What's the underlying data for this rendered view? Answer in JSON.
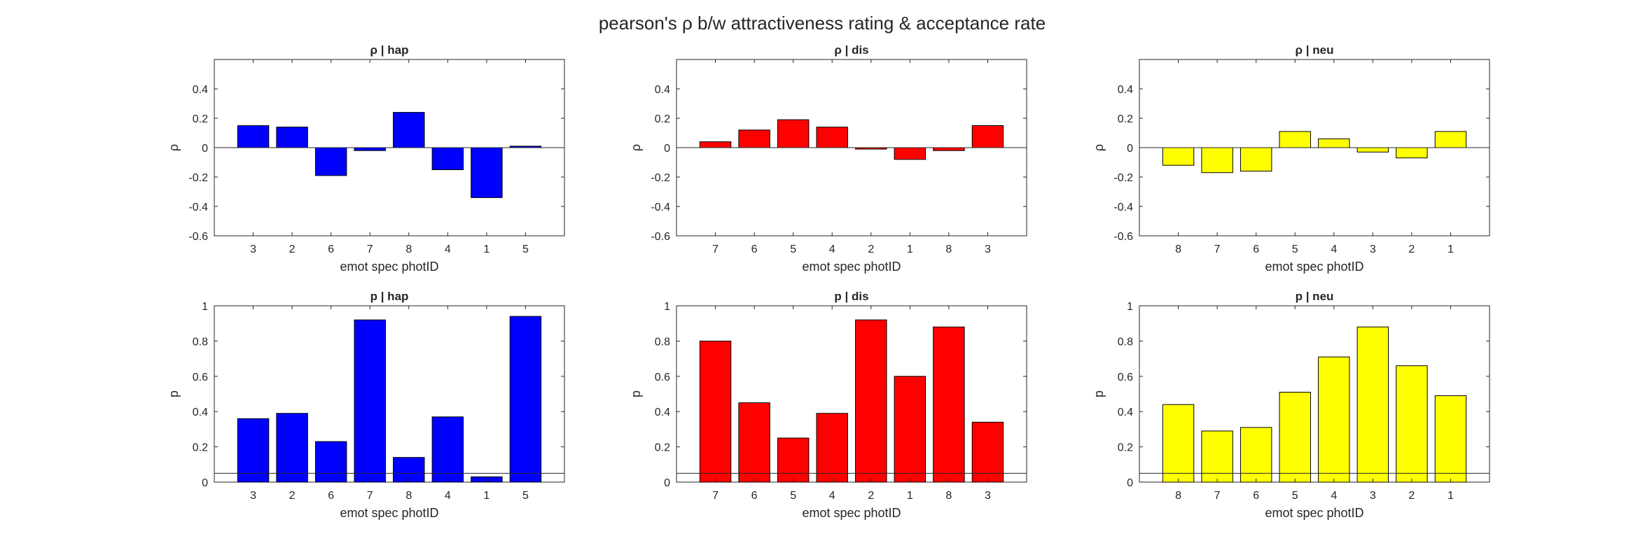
{
  "figure": {
    "title": "pearson's ρ b/w attractiveness rating & acceptance rate"
  },
  "chart_data": [
    {
      "type": "bar",
      "title": "ρ | hap",
      "xlabel": "emot spec photID",
      "ylabel": "ρ",
      "color": "#0000ff",
      "ylim": [
        -0.6,
        0.6
      ],
      "yticks": [
        -0.6,
        -0.4,
        -0.2,
        0,
        0.2,
        0.4
      ],
      "ytick_labels": [
        "-0.6",
        "-0.4",
        "-0.2",
        "0",
        "0.2",
        "0.4"
      ],
      "categories": [
        "3",
        "2",
        "6",
        "7",
        "8",
        "4",
        "1",
        "5"
      ],
      "values": [
        0.15,
        0.14,
        -0.19,
        -0.02,
        0.24,
        -0.15,
        -0.34,
        0.01
      ],
      "reference_line": 0
    },
    {
      "type": "bar",
      "title": "ρ | dis",
      "xlabel": "emot spec photID",
      "ylabel": "ρ",
      "color": "#ff0000",
      "ylim": [
        -0.6,
        0.6
      ],
      "yticks": [
        -0.6,
        -0.4,
        -0.2,
        0,
        0.2,
        0.4
      ],
      "ytick_labels": [
        "-0.6",
        "-0.4",
        "-0.2",
        "0",
        "0.2",
        "0.4"
      ],
      "categories": [
        "7",
        "6",
        "5",
        "4",
        "2",
        "1",
        "8",
        "3"
      ],
      "values": [
        0.04,
        0.12,
        0.19,
        0.14,
        -0.01,
        -0.08,
        -0.02,
        0.15
      ],
      "reference_line": 0
    },
    {
      "type": "bar",
      "title": "ρ | neu",
      "xlabel": "emot spec photID",
      "ylabel": "ρ",
      "color": "#ffff00",
      "ylim": [
        -0.6,
        0.6
      ],
      "yticks": [
        -0.6,
        -0.4,
        -0.2,
        0,
        0.2,
        0.4
      ],
      "ytick_labels": [
        "-0.6",
        "-0.4",
        "-0.2",
        "0",
        "0.2",
        "0.4"
      ],
      "categories": [
        "8",
        "7",
        "6",
        "5",
        "4",
        "3",
        "2",
        "1"
      ],
      "values": [
        -0.12,
        -0.17,
        -0.16,
        0.11,
        0.06,
        -0.03,
        -0.07,
        0.11
      ],
      "reference_line": 0
    },
    {
      "type": "bar",
      "title": "p | hap",
      "xlabel": "emot spec photID",
      "ylabel": "p",
      "color": "#0000ff",
      "ylim": [
        0,
        1
      ],
      "yticks": [
        0,
        0.2,
        0.4,
        0.6,
        0.8,
        1
      ],
      "ytick_labels": [
        "0",
        "0.2",
        "0.4",
        "0.6",
        "0.8",
        "1"
      ],
      "categories": [
        "3",
        "2",
        "6",
        "7",
        "8",
        "4",
        "1",
        "5"
      ],
      "values": [
        0.36,
        0.39,
        0.23,
        0.92,
        0.14,
        0.37,
        0.03,
        0.94
      ],
      "reference_line": 0.05
    },
    {
      "type": "bar",
      "title": "p | dis",
      "xlabel": "emot spec photID",
      "ylabel": "p",
      "color": "#ff0000",
      "ylim": [
        0,
        1
      ],
      "yticks": [
        0,
        0.2,
        0.4,
        0.6,
        0.8,
        1
      ],
      "ytick_labels": [
        "0",
        "0.2",
        "0.4",
        "0.6",
        "0.8",
        "1"
      ],
      "categories": [
        "7",
        "6",
        "5",
        "4",
        "2",
        "1",
        "8",
        "3"
      ],
      "values": [
        0.8,
        0.45,
        0.25,
        0.39,
        0.92,
        0.6,
        0.88,
        0.34
      ],
      "reference_line": 0.05
    },
    {
      "type": "bar",
      "title": "p | neu",
      "xlabel": "emot spec photID",
      "ylabel": "p",
      "color": "#ffff00",
      "ylim": [
        0,
        1
      ],
      "yticks": [
        0,
        0.2,
        0.4,
        0.6,
        0.8,
        1
      ],
      "ytick_labels": [
        "0",
        "0.2",
        "0.4",
        "0.6",
        "0.8",
        "1"
      ],
      "categories": [
        "8",
        "7",
        "6",
        "5",
        "4",
        "3",
        "2",
        "1"
      ],
      "values": [
        0.44,
        0.29,
        0.31,
        0.51,
        0.71,
        0.88,
        0.66,
        0.49
      ],
      "reference_line": 0.05
    }
  ]
}
